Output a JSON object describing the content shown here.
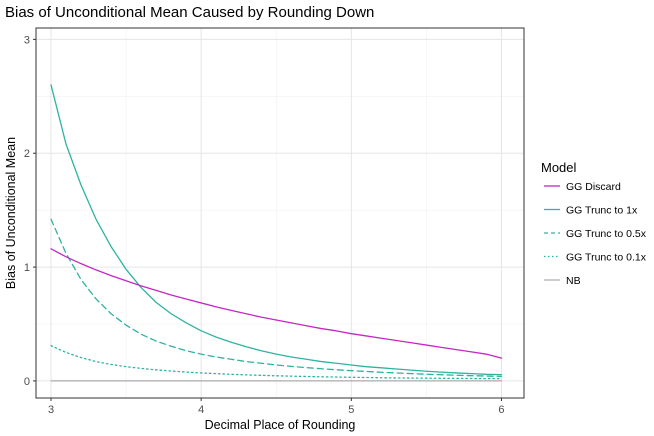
{
  "chart_data": {
    "type": "line",
    "title": "Bias of Unconditional Mean Caused by Rounding Down",
    "xlabel": "Decimal Place of Rounding",
    "ylabel": "Bias of Unconditional Mean",
    "xlim": [
      2.9,
      6.15
    ],
    "ylim": [
      -0.15,
      3.1
    ],
    "x_ticks": [
      3,
      4,
      5,
      6
    ],
    "y_ticks": [
      0,
      1,
      2,
      3
    ],
    "grid": true,
    "legend": {
      "title": "Model",
      "placement": "right"
    },
    "x": [
      3,
      3.1,
      3.2,
      3.3,
      3.4,
      3.5,
      3.6,
      3.7,
      3.8,
      3.9,
      4,
      4.1,
      4.2,
      4.3,
      4.4,
      4.5,
      4.6,
      4.7,
      4.8,
      4.9,
      5,
      5.1,
      5.2,
      5.3,
      5.4,
      5.5,
      5.6,
      5.7,
      5.8,
      5.9,
      6
    ],
    "series": [
      {
        "name": "GG Discard",
        "color": "#c427c6",
        "dash": "solid",
        "values": [
          1.16,
          1.09,
          1.03,
          0.975,
          0.925,
          0.88,
          0.835,
          0.795,
          0.755,
          0.72,
          0.685,
          0.65,
          0.62,
          0.59,
          0.56,
          0.535,
          0.51,
          0.485,
          0.46,
          0.44,
          0.415,
          0.395,
          0.375,
          0.355,
          0.335,
          0.315,
          0.295,
          0.275,
          0.255,
          0.235,
          0.2
        ]
      },
      {
        "name": "GG Trunc to 1x",
        "color": "#2fb3a1",
        "dash": "solid",
        "values": [
          2.6,
          2.08,
          1.72,
          1.42,
          1.18,
          0.98,
          0.82,
          0.69,
          0.59,
          0.51,
          0.44,
          0.385,
          0.34,
          0.3,
          0.265,
          0.235,
          0.21,
          0.19,
          0.17,
          0.155,
          0.14,
          0.125,
          0.115,
          0.105,
          0.095,
          0.085,
          0.077,
          0.07,
          0.064,
          0.058,
          0.055
        ]
      },
      {
        "name": "GG Trunc to 0.5x",
        "color": "#2fb3a1",
        "dash": "dashed",
        "values": [
          1.42,
          1.12,
          0.89,
          0.72,
          0.59,
          0.49,
          0.41,
          0.35,
          0.305,
          0.265,
          0.235,
          0.21,
          0.19,
          0.17,
          0.155,
          0.14,
          0.128,
          0.117,
          0.107,
          0.098,
          0.09,
          0.083,
          0.076,
          0.07,
          0.064,
          0.059,
          0.054,
          0.05,
          0.046,
          0.043,
          0.04
        ]
      },
      {
        "name": "GG Trunc to 0.1x",
        "color": "#2fb3a1",
        "dash": "dotted",
        "values": [
          0.31,
          0.25,
          0.205,
          0.17,
          0.145,
          0.125,
          0.11,
          0.097,
          0.087,
          0.078,
          0.07,
          0.064,
          0.058,
          0.053,
          0.049,
          0.045,
          0.042,
          0.039,
          0.036,
          0.034,
          0.032,
          0.03,
          0.028,
          0.026,
          0.025,
          0.024,
          0.023,
          0.022,
          0.021,
          0.02,
          0.02
        ]
      },
      {
        "name": "NB",
        "color": "#9a9a9a",
        "dash": "solid",
        "values": [
          0,
          0,
          0,
          0,
          0,
          0,
          0,
          0,
          0,
          0,
          0,
          0,
          0,
          0,
          0,
          0,
          0,
          0,
          0,
          0,
          0,
          0,
          0,
          0,
          0,
          0,
          0,
          0,
          0,
          0,
          0
        ]
      }
    ]
  }
}
